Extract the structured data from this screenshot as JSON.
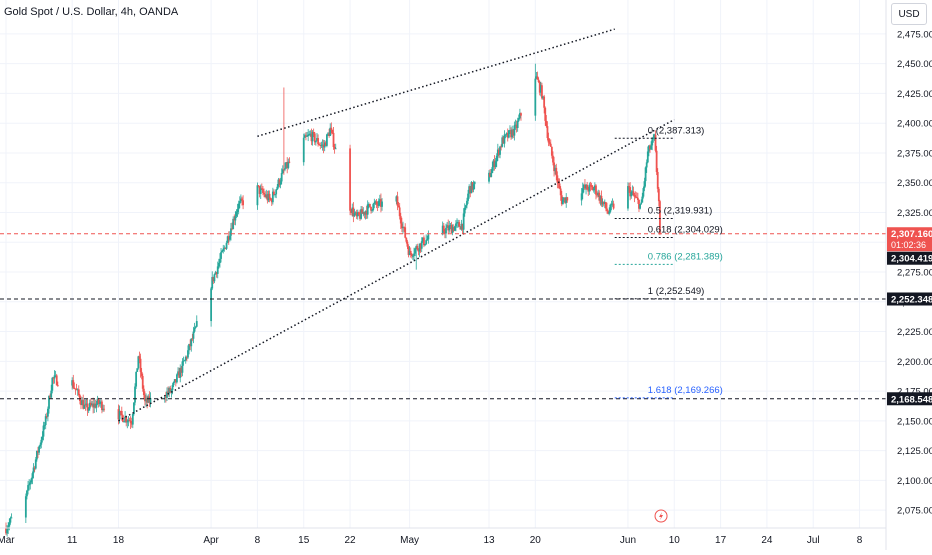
{
  "header": {
    "title": "Gold Spot / U.S. Dollar, 4h, OANDA",
    "currency": "USD"
  },
  "chart_data": {
    "type": "candlestick",
    "title": "Gold Spot / U.S. Dollar, 4h, OANDA",
    "ylim": [
      2060,
      2485
    ],
    "y_ticks": [
      2075,
      2100,
      2125,
      2150,
      2175,
      2200,
      2225,
      2250,
      2275,
      2300,
      2325,
      2350,
      2375,
      2400,
      2425,
      2450,
      2475
    ],
    "x_ticks": [
      {
        "label": "Mar",
        "date": "2024-03-01"
      },
      {
        "label": "11",
        "date": "2024-03-11"
      },
      {
        "label": "18",
        "date": "2024-03-18"
      },
      {
        "label": "Apr",
        "date": "2024-04-01"
      },
      {
        "label": "8",
        "date": "2024-04-08"
      },
      {
        "label": "15",
        "date": "2024-04-15"
      },
      {
        "label": "22",
        "date": "2024-04-22"
      },
      {
        "label": "May",
        "date": "2024-05-01"
      },
      {
        "label": "13",
        "date": "2024-05-13"
      },
      {
        "label": "20",
        "date": "2024-05-20"
      },
      {
        "label": "Jun",
        "date": "2024-06-03"
      },
      {
        "label": "10",
        "date": "2024-06-10"
      },
      {
        "label": "17",
        "date": "2024-06-17"
      },
      {
        "label": "24",
        "date": "2024-06-24"
      },
      {
        "label": "Jul",
        "date": "2024-07-01"
      },
      {
        "label": "8",
        "date": "2024-07-08"
      }
    ],
    "anchors": [
      {
        "date": "2024-03-01",
        "price": 2060
      },
      {
        "date": "2024-03-04",
        "price": 2085
      },
      {
        "date": "2024-03-07",
        "price": 2150
      },
      {
        "date": "2024-03-08",
        "price": 2185
      },
      {
        "date": "2024-03-11",
        "price": 2182
      },
      {
        "date": "2024-03-13",
        "price": 2160
      },
      {
        "date": "2024-03-15",
        "price": 2165
      },
      {
        "date": "2024-03-18",
        "price": 2155
      },
      {
        "date": "2024-03-20",
        "price": 2150
      },
      {
        "date": "2024-03-21",
        "price": 2205
      },
      {
        "date": "2024-03-22",
        "price": 2165
      },
      {
        "date": "2024-03-26",
        "price": 2175
      },
      {
        "date": "2024-03-28",
        "price": 2200
      },
      {
        "date": "2024-04-01",
        "price": 2265
      },
      {
        "date": "2024-04-03",
        "price": 2295
      },
      {
        "date": "2024-04-05",
        "price": 2330
      },
      {
        "date": "2024-04-08",
        "price": 2345
      },
      {
        "date": "2024-04-10",
        "price": 2335
      },
      {
        "date": "2024-04-12",
        "price": 2360
      },
      {
        "date": "2024-04-15",
        "price": 2385
      },
      {
        "date": "2024-04-16",
        "price": 2390
      },
      {
        "date": "2024-04-18",
        "price": 2380
      },
      {
        "date": "2024-04-19",
        "price": 2395
      },
      {
        "date": "2024-04-22",
        "price": 2330
      },
      {
        "date": "2024-04-23",
        "price": 2320
      },
      {
        "date": "2024-04-25",
        "price": 2330
      },
      {
        "date": "2024-04-29",
        "price": 2335
      },
      {
        "date": "2024-05-01",
        "price": 2290
      },
      {
        "date": "2024-05-03",
        "price": 2300
      },
      {
        "date": "2024-05-06",
        "price": 2310
      },
      {
        "date": "2024-05-09",
        "price": 2315
      },
      {
        "date": "2024-05-10",
        "price": 2345
      },
      {
        "date": "2024-05-13",
        "price": 2355
      },
      {
        "date": "2024-05-15",
        "price": 2385
      },
      {
        "date": "2024-05-17",
        "price": 2395
      },
      {
        "date": "2024-05-20",
        "price": 2440
      },
      {
        "date": "2024-05-21",
        "price": 2425
      },
      {
        "date": "2024-05-22",
        "price": 2385
      },
      {
        "date": "2024-05-24",
        "price": 2335
      },
      {
        "date": "2024-05-27",
        "price": 2345
      },
      {
        "date": "2024-05-29",
        "price": 2345
      },
      {
        "date": "2024-05-31",
        "price": 2325
      },
      {
        "date": "2024-06-03",
        "price": 2345
      },
      {
        "date": "2024-06-05",
        "price": 2330
      },
      {
        "date": "2024-06-06",
        "price": 2375
      },
      {
        "date": "2024-06-07",
        "price": 2387
      },
      {
        "date": "2024-06-08",
        "price": 2307
      }
    ],
    "spikes": [
      {
        "date": "2024-04-12",
        "high": 2430
      },
      {
        "date": "2024-05-20",
        "high": 2450
      },
      {
        "date": "2024-05-02",
        "low": 2277
      }
    ],
    "trendlines": [
      {
        "name": "upper-resistance",
        "from": {
          "date": "2024-04-08",
          "price": 2389
        },
        "to": {
          "date": "2024-06-01",
          "price": 2479
        }
      },
      {
        "name": "lower-support",
        "from": {
          "date": "2024-03-18",
          "price": 2150
        },
        "to": {
          "date": "2024-06-10",
          "price": 2403
        }
      }
    ],
    "fibonacci": {
      "from_date": "2024-06-01",
      "to_date": "2024-06-10",
      "levels": [
        {
          "label": "0 (2,387.313)",
          "price": 2387.313,
          "color": "#131722"
        },
        {
          "label": "0.5 (2,319.931)",
          "price": 2319.931,
          "color": "#131722"
        },
        {
          "label": "0.618 (2,304.029)",
          "price": 2304.029,
          "color": "#131722"
        },
        {
          "label": "0.786 (2,281.389)",
          "price": 2281.389,
          "color": "#26a69a"
        },
        {
          "label": "1 (2,252.549)",
          "price": 2252.549,
          "color": "#131722"
        },
        {
          "label": "1.618 (2,169.266)",
          "price": 2169.266,
          "color": "#2962ff"
        }
      ]
    },
    "horizontal_lines": [
      {
        "price": 2307.16,
        "color": "#ef5350",
        "style": "dashed"
      },
      {
        "price": 2252.348,
        "color": "#131722",
        "style": "dashed"
      },
      {
        "price": 2168.548,
        "color": "#131722",
        "style": "dashed"
      }
    ],
    "price_labels": [
      {
        "price": 2307.16,
        "text": "2,307.160",
        "sub": "01:02:36",
        "bg": "#ef5350",
        "fg": "#ffffff"
      },
      {
        "price": 2304.419,
        "text": "2,304.419",
        "bg": "#131722",
        "fg": "#ffffff"
      },
      {
        "price": 2252.348,
        "text": "2,252.348",
        "bg": "#131722",
        "fg": "#ffffff"
      },
      {
        "price": 2168.548,
        "text": "2,168.548",
        "bg": "#131722",
        "fg": "#ffffff"
      }
    ],
    "colors": {
      "up": "#26a69a",
      "down": "#ef5350",
      "grid": "#f0f3fa",
      "axis_text": "#131722"
    },
    "grid": true
  }
}
